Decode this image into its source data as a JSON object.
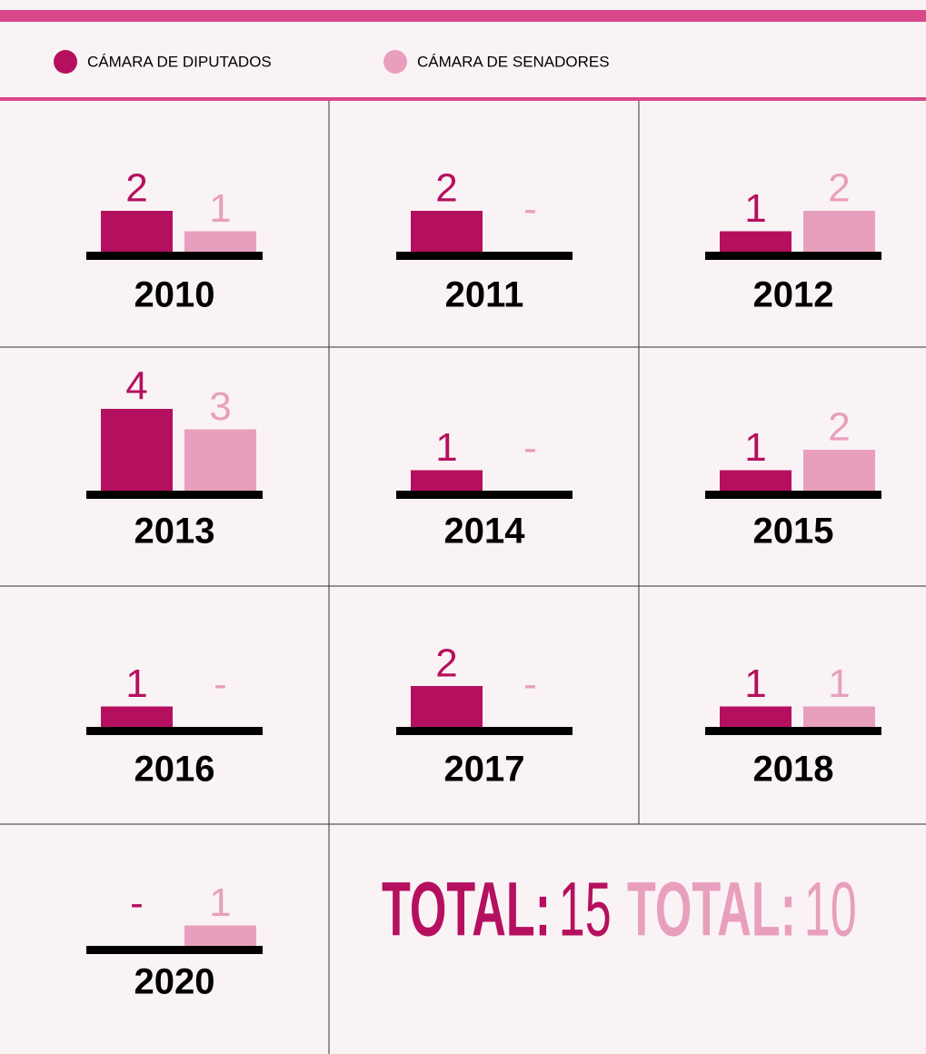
{
  "chart_data": {
    "type": "bar",
    "categories": [
      "2010",
      "2011",
      "2012",
      "2013",
      "2014",
      "2015",
      "2016",
      "2017",
      "2018",
      "2020"
    ],
    "series": [
      {
        "name": "CÁMARA DE DIPUTADOS",
        "color": "#b5105f",
        "values": [
          2,
          2,
          1,
          4,
          1,
          1,
          1,
          2,
          1,
          0
        ],
        "value_labels": [
          "2",
          "2",
          "1",
          "4",
          "1",
          "1",
          "1",
          "2",
          "1",
          "-"
        ],
        "total_label": "TOTAL:",
        "total": 15
      },
      {
        "name": "CÁMARA DE SENADORES",
        "color": "#e89fbd",
        "values": [
          1,
          0,
          2,
          3,
          0,
          2,
          0,
          0,
          1,
          1
        ],
        "value_labels": [
          "1",
          "-",
          "2",
          "3",
          "-",
          "2",
          "-",
          "-",
          "1",
          "1"
        ],
        "total_label": "TOTAL:",
        "total": 10
      }
    ]
  }
}
